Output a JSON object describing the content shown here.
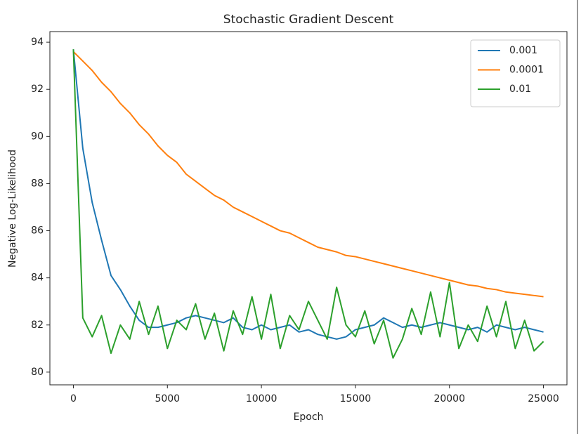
{
  "chart_data": {
    "type": "line",
    "title": "Stochastic Gradient Descent",
    "x_label": "Epoch",
    "y_label": "Negative Log-Likelihood",
    "x": [
      0,
      500,
      1000,
      1500,
      2000,
      2500,
      3000,
      3500,
      4000,
      4500,
      5000,
      5500,
      6000,
      6500,
      7000,
      7500,
      8000,
      8500,
      9000,
      9500,
      10000,
      10500,
      11000,
      11500,
      12000,
      12500,
      13000,
      13500,
      14000,
      14500,
      15000,
      15500,
      16000,
      16500,
      17000,
      17500,
      18000,
      18500,
      19000,
      19500,
      20000,
      20500,
      21000,
      21500,
      22000,
      22500,
      23000,
      23500,
      24000,
      24500,
      25000
    ],
    "series": [
      {
        "name": "0.001",
        "color": "#1f77b4",
        "values": [
          93.7,
          89.5,
          87.2,
          85.6,
          84.1,
          83.5,
          82.8,
          82.2,
          81.9,
          81.9,
          82.0,
          82.1,
          82.3,
          82.4,
          82.3,
          82.2,
          82.1,
          82.3,
          81.9,
          81.8,
          82.0,
          81.8,
          81.9,
          82.0,
          81.7,
          81.8,
          81.6,
          81.5,
          81.4,
          81.5,
          81.8,
          81.9,
          82.0,
          82.3,
          82.1,
          81.9,
          82.0,
          81.9,
          82.0,
          82.1,
          82.0,
          81.9,
          81.8,
          81.9,
          81.7,
          82.0,
          81.9,
          81.8,
          81.9,
          81.8,
          81.7
        ]
      },
      {
        "name": "0.0001",
        "color": "#ff7f0e",
        "values": [
          93.6,
          93.2,
          92.8,
          92.3,
          91.9,
          91.4,
          91.0,
          90.5,
          90.1,
          89.6,
          89.2,
          88.9,
          88.4,
          88.1,
          87.8,
          87.5,
          87.3,
          87.0,
          86.8,
          86.6,
          86.4,
          86.2,
          86.0,
          85.9,
          85.7,
          85.5,
          85.3,
          85.2,
          85.1,
          84.95,
          84.9,
          84.8,
          84.7,
          84.6,
          84.5,
          84.4,
          84.3,
          84.2,
          84.1,
          84.0,
          83.9,
          83.8,
          83.7,
          83.65,
          83.55,
          83.5,
          83.4,
          83.35,
          83.3,
          83.25,
          83.2
        ]
      },
      {
        "name": "0.01",
        "color": "#2ca02c",
        "values": [
          93.7,
          82.3,
          81.5,
          82.4,
          80.8,
          82.0,
          81.4,
          83.0,
          81.6,
          82.8,
          81.0,
          82.2,
          81.8,
          82.9,
          81.4,
          82.5,
          80.9,
          82.6,
          81.6,
          83.2,
          81.4,
          83.3,
          81.0,
          82.4,
          81.8,
          83.0,
          82.2,
          81.4,
          83.6,
          82.0,
          81.5,
          82.6,
          81.2,
          82.2,
          80.6,
          81.4,
          82.7,
          81.6,
          83.4,
          81.5,
          83.8,
          81.0,
          82.0,
          81.3,
          82.8,
          81.5,
          83.0,
          81.0,
          82.2,
          80.9,
          81.3
        ]
      }
    ],
    "xlim": [
      -1250,
      26250
    ],
    "ylim": [
      79.46,
      94.45
    ],
    "xticks": [
      0,
      5000,
      10000,
      15000,
      20000,
      25000
    ],
    "yticks": [
      80,
      82,
      84,
      86,
      88,
      90,
      92,
      94
    ],
    "legend": "upper right"
  }
}
